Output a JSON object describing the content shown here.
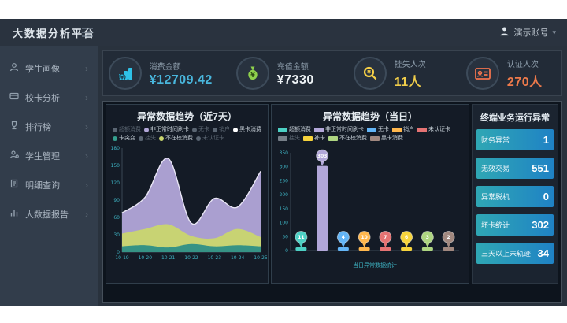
{
  "app": {
    "title": "大数据分析平台",
    "user_name": "演示账号"
  },
  "sidebar": {
    "items": [
      {
        "label": "学生画像",
        "icon": "student-portrait-icon"
      },
      {
        "label": "校卡分析",
        "icon": "card-analysis-icon"
      },
      {
        "label": "排行榜",
        "icon": "ranking-icon"
      },
      {
        "label": "学生管理",
        "icon": "student-manage-icon"
      },
      {
        "label": "明细查询",
        "icon": "detail-query-icon"
      },
      {
        "label": "大数据报告",
        "icon": "bigdata-report-icon"
      }
    ]
  },
  "kpis": [
    {
      "label": "消费金额",
      "value": "¥12709.42",
      "color": "#49b6dc",
      "icon": "consume-amount-icon"
    },
    {
      "label": "充值金额",
      "value": "¥7330",
      "color": "#eef3f6",
      "icon": "recharge-amount-icon"
    },
    {
      "label": "挂失人次",
      "value": "11人",
      "color": "#f0cd4a",
      "icon": "loss-report-icon"
    },
    {
      "label": "认证人次",
      "value": "270人",
      "color": "#ee7a4b",
      "icon": "certification-icon"
    }
  ],
  "chart_data": [
    {
      "type": "area",
      "title": "异常数据趋势（近7天）",
      "x": [
        "10-19",
        "10-20",
        "10-21",
        "10-22",
        "10-23",
        "10-24",
        "10-25"
      ],
      "ylim": [
        0,
        180
      ],
      "yticks": [
        0,
        30,
        60,
        90,
        120,
        150,
        180
      ],
      "legend": [
        {
          "label": "超额消费",
          "enabled": false,
          "color": "#5a6572"
        },
        {
          "label": "非正常时间刷卡",
          "enabled": true,
          "color": "#b2a7d9"
        },
        {
          "label": "无卡",
          "enabled": false,
          "color": "#5a6572"
        },
        {
          "label": "销户",
          "enabled": false,
          "color": "#5a6572"
        },
        {
          "label": "黑卡消费",
          "enabled": true,
          "color": "#ffffff"
        },
        {
          "label": "卡突变",
          "enabled": true,
          "color": "#35a08f"
        },
        {
          "label": "挂失",
          "enabled": false,
          "color": "#5a6572"
        },
        {
          "label": "不在校消费",
          "enabled": true,
          "color": "#c9d66e"
        },
        {
          "label": "未认证卡",
          "enabled": false,
          "color": "#5a6572"
        }
      ],
      "series": [
        {
          "name": "非正常时间刷卡",
          "color": "#b2a7d9",
          "values": [
            68,
            95,
            162,
            50,
            93,
            78,
            140
          ]
        },
        {
          "name": "不在校消费",
          "color": "#c9d66e",
          "values": [
            32,
            40,
            48,
            28,
            24,
            40,
            26
          ]
        },
        {
          "name": "卡突变",
          "color": "#2e8f86",
          "values": [
            10,
            12,
            8,
            14,
            10,
            12,
            10
          ]
        }
      ]
    },
    {
      "type": "bar",
      "title": "异常数据趋势（当日）",
      "xlabel": "当日异常数据统计",
      "ylim": [
        0,
        350
      ],
      "yticks": [
        0,
        50,
        100,
        150,
        200,
        250,
        300,
        350
      ],
      "legend": [
        {
          "label": "超额消费",
          "enabled": true,
          "color": "#4dd0c4"
        },
        {
          "label": "非正常时间刷卡",
          "enabled": true,
          "color": "#b2a7d9"
        },
        {
          "label": "无卡",
          "enabled": true,
          "color": "#64b5f6"
        },
        {
          "label": "销户",
          "enabled": true,
          "color": "#ffb74d"
        },
        {
          "label": "未认证卡",
          "enabled": true,
          "color": "#e57373"
        },
        {
          "label": "挂失",
          "enabled": false,
          "color": "#777f88"
        },
        {
          "label": "补卡",
          "enabled": true,
          "color": "#f6d33c"
        },
        {
          "label": "不在校消费",
          "enabled": true,
          "color": "#aed581"
        },
        {
          "label": "黑卡消费",
          "enabled": true,
          "color": "#a1887f"
        }
      ],
      "categories": [
        "超额消费",
        "非正常时间刷卡",
        "无卡",
        "销户",
        "未认证卡",
        "补卡",
        "不在校消费",
        "黑卡消费"
      ],
      "values": [
        11,
        303,
        4,
        10,
        7,
        6,
        3,
        2
      ],
      "colors": [
        "#4dd0c4",
        "#b2a7d9",
        "#64b5f6",
        "#ffb74d",
        "#e57373",
        "#f6d33c",
        "#aed581",
        "#a1887f"
      ]
    }
  ],
  "terminal_panel": {
    "title": "终端业务运行异常",
    "items": [
      {
        "label": "财务异常",
        "value": "1"
      },
      {
        "label": "无效交易",
        "value": "551"
      },
      {
        "label": "异常脱机",
        "value": "0"
      },
      {
        "label": "坏卡统计",
        "value": "302"
      },
      {
        "label": "三天以上未轨迹",
        "value": "34"
      }
    ]
  }
}
